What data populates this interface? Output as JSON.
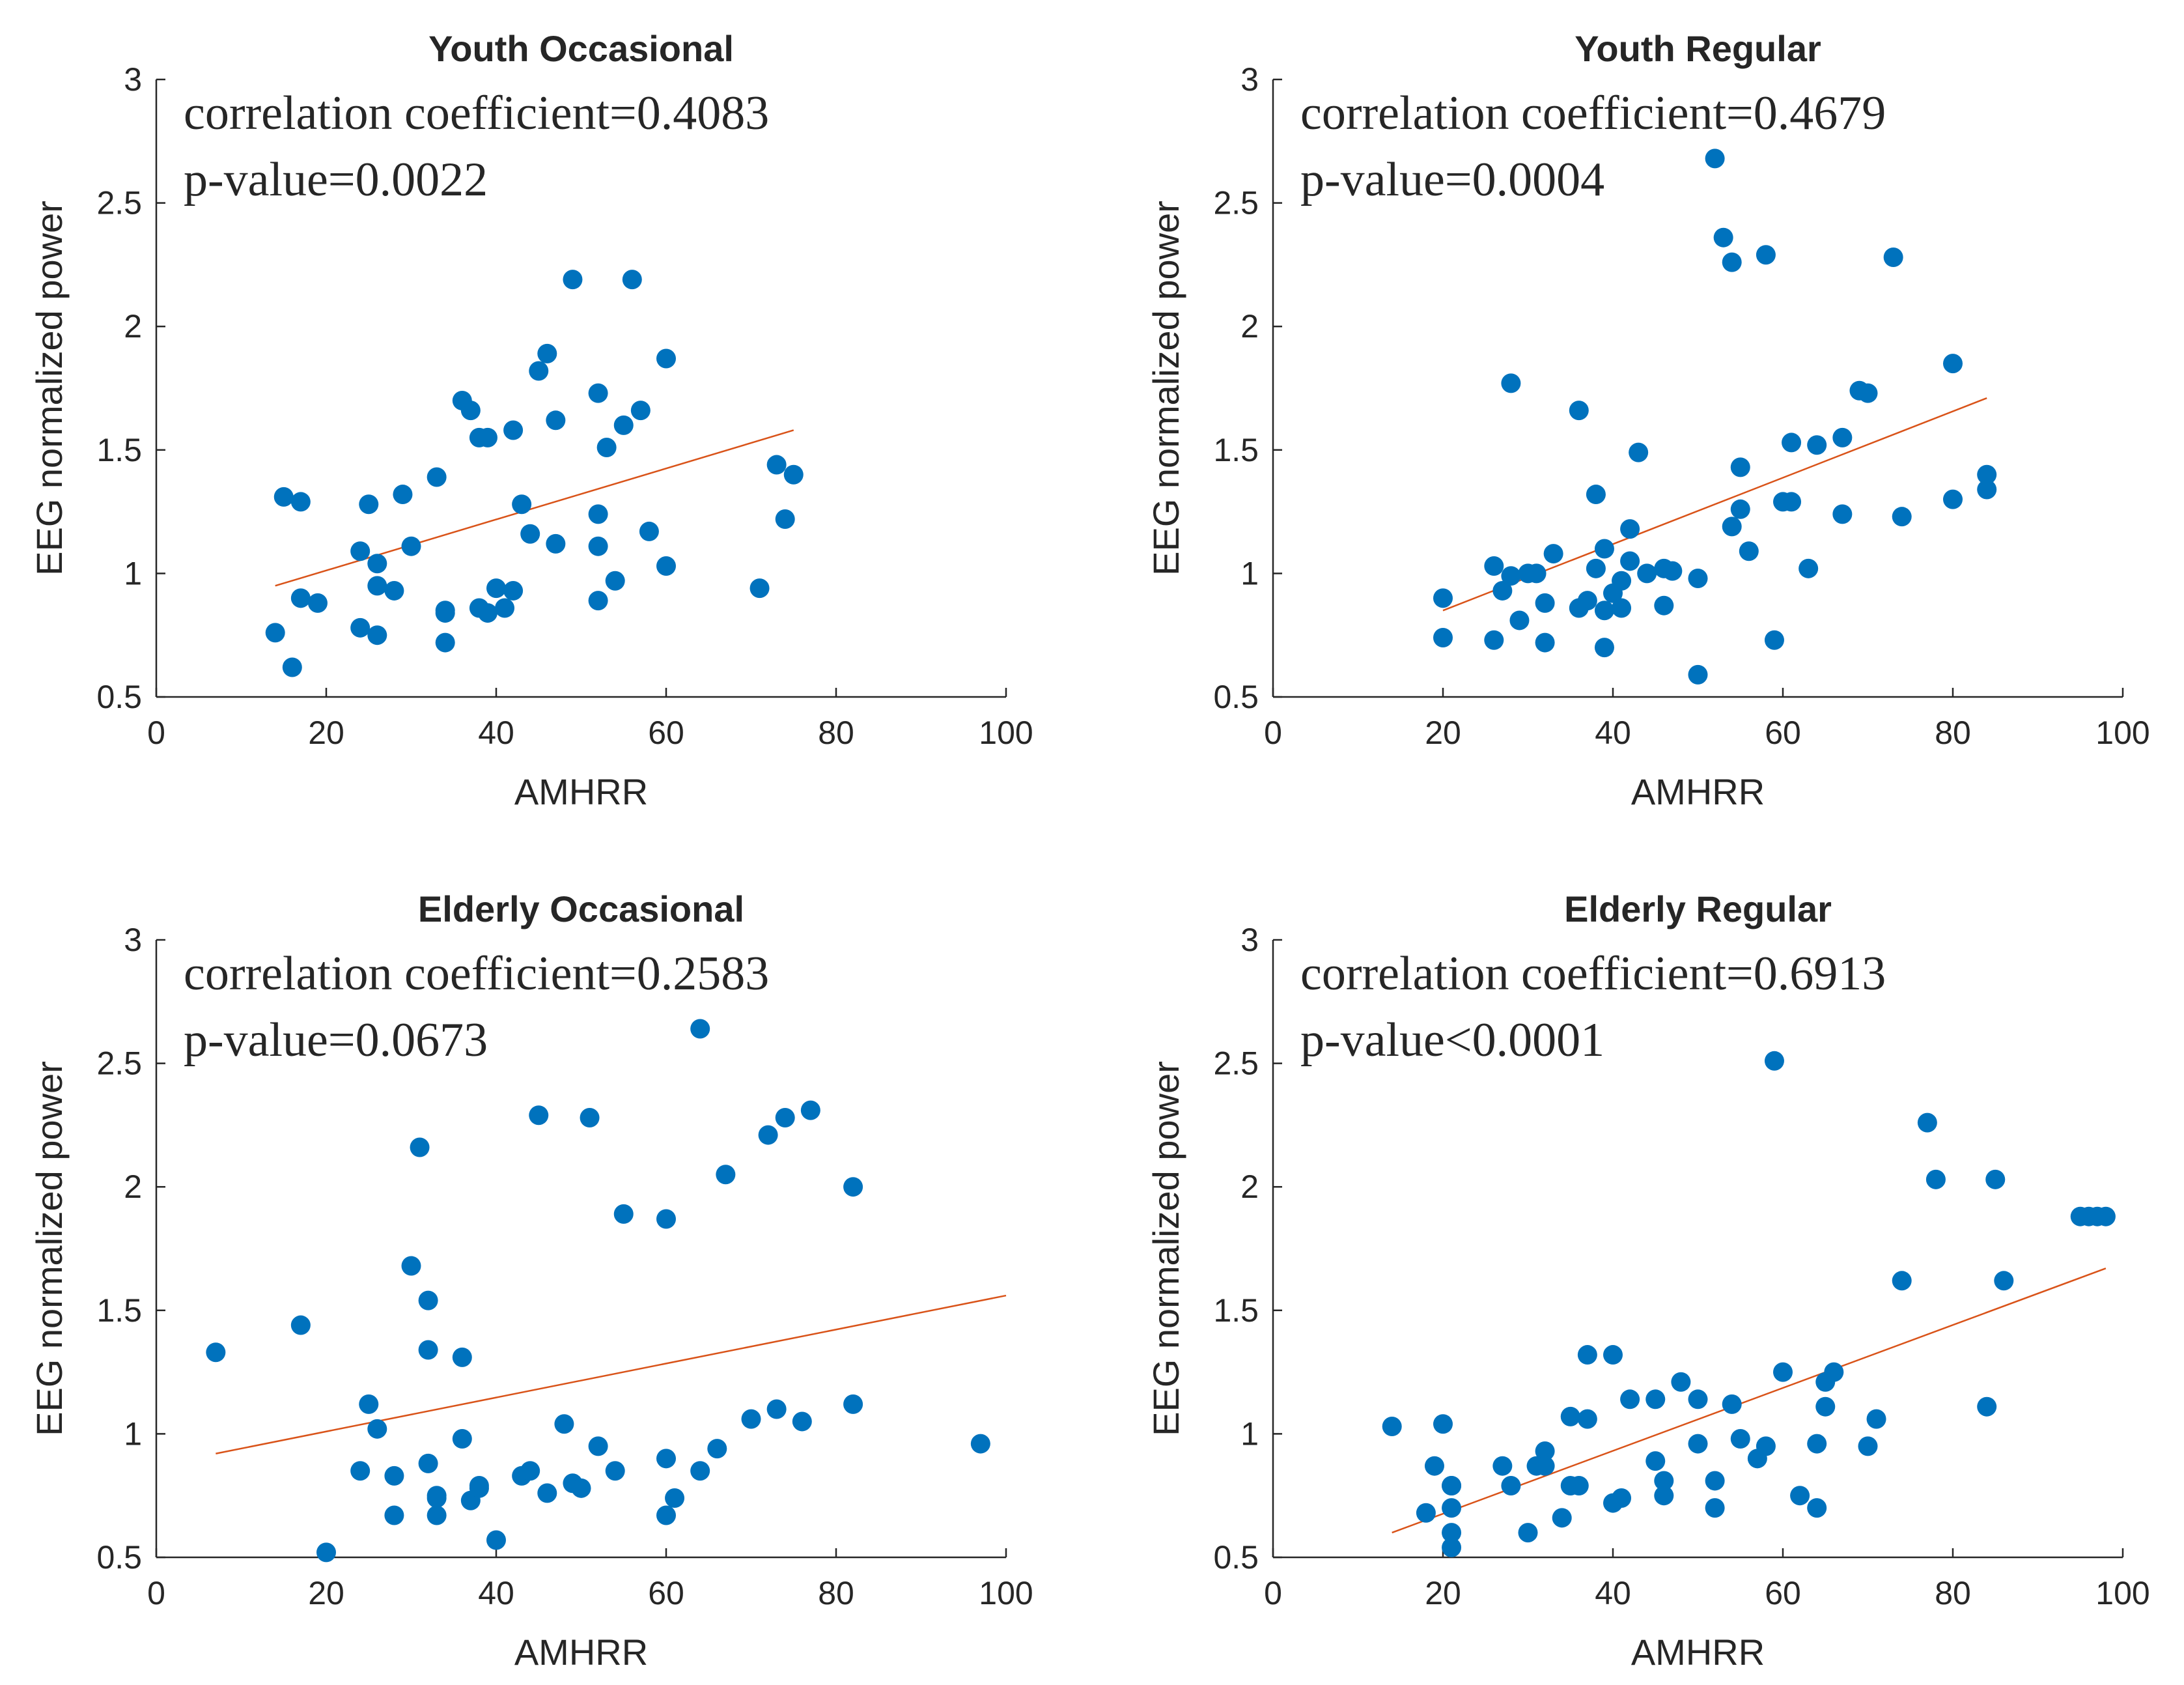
{
  "figure": {
    "colors": {
      "point": "#0072BD",
      "fit_line": "#D95319",
      "axis": "#262626"
    }
  },
  "chart_data": [
    {
      "type": "scatter",
      "title": "Youth Occasional",
      "xlabel": "AMHRR",
      "ylabel": "EEG normalized power",
      "xlim": [
        0,
        100
      ],
      "ylim": [
        0.5,
        3
      ],
      "xticks": [
        "0",
        "20",
        "40",
        "60",
        "80",
        "100"
      ],
      "yticks": [
        "0.5",
        "1",
        "1.5",
        "2",
        "2.5",
        "3"
      ],
      "annotations": [
        "correlation coefficient=0.4083",
        "p-value=0.0022"
      ],
      "fit_line": {
        "x": [
          14,
          75
        ],
        "y": [
          0.95,
          1.58
        ]
      },
      "x": [
        14,
        15,
        16,
        17,
        17,
        19,
        24,
        24,
        25,
        26,
        26,
        26,
        28,
        29,
        30,
        33,
        34,
        34,
        34,
        36,
        37,
        38,
        38,
        39,
        39,
        40,
        41,
        42,
        42,
        43,
        44,
        45,
        46,
        47,
        47,
        49,
        52,
        52,
        52,
        52,
        53,
        54,
        55,
        56,
        57,
        58,
        60,
        60,
        71,
        73,
        74,
        75
      ],
      "y": [
        0.76,
        1.31,
        0.62,
        1.29,
        0.9,
        0.88,
        1.09,
        0.78,
        1.28,
        0.75,
        0.95,
        1.04,
        0.93,
        1.32,
        1.11,
        1.39,
        0.85,
        0.84,
        0.72,
        1.7,
        1.66,
        1.55,
        0.86,
        1.55,
        0.84,
        0.94,
        0.86,
        1.58,
        0.93,
        1.28,
        1.16,
        1.82,
        1.89,
        1.62,
        1.12,
        2.19,
        1.73,
        1.24,
        1.11,
        0.89,
        1.51,
        0.97,
        1.6,
        2.19,
        1.66,
        1.17,
        1.03,
        1.87,
        0.94,
        1.44,
        1.22,
        1.4
      ]
    },
    {
      "type": "scatter",
      "title": "Youth Regular",
      "xlabel": "AMHRR",
      "ylabel": "EEG normalized power",
      "xlim": [
        0,
        100
      ],
      "ylim": [
        0.5,
        3
      ],
      "xticks": [
        "0",
        "20",
        "40",
        "60",
        "80",
        "100"
      ],
      "yticks": [
        "0.5",
        "1",
        "1.5",
        "2",
        "2.5",
        "3"
      ],
      "annotations": [
        "correlation coefficient=0.4679",
        "p-value=0.0004"
      ],
      "fit_line": {
        "x": [
          20,
          84
        ],
        "y": [
          0.85,
          1.71
        ]
      },
      "x": [
        20,
        20,
        26,
        26,
        27,
        28,
        29,
        30,
        31,
        32,
        32,
        33,
        36,
        37,
        38,
        38,
        39,
        39,
        39,
        40,
        41,
        41,
        42,
        42,
        43,
        44,
        46,
        46,
        47,
        50,
        52,
        53,
        54,
        54,
        55,
        55,
        56,
        58,
        59,
        61,
        61,
        63,
        64,
        67,
        67,
        69,
        70,
        73,
        74,
        80,
        80,
        84,
        84,
        36,
        28,
        50,
        60
      ],
      "y": [
        0.9,
        0.74,
        1.03,
        0.73,
        0.93,
        1.77,
        0.81,
        1.0,
        1.0,
        0.88,
        0.72,
        1.08,
        0.86,
        0.89,
        1.02,
        1.32,
        0.7,
        1.1,
        0.85,
        0.92,
        0.86,
        0.97,
        1.18,
        1.05,
        1.49,
        1.0,
        0.87,
        1.02,
        1.01,
        0.59,
        2.68,
        2.36,
        2.26,
        1.19,
        1.26,
        1.43,
        1.09,
        2.29,
        0.73,
        1.53,
        1.29,
        1.02,
        1.52,
        1.55,
        1.24,
        1.74,
        1.73,
        2.28,
        1.23,
        1.85,
        1.3,
        1.34,
        1.4,
        1.66,
        0.99,
        0.98,
        1.29
      ]
    },
    {
      "type": "scatter",
      "title": "Elderly Occasional",
      "xlabel": "AMHRR",
      "ylabel": "EEG normalized power",
      "xlim": [
        0,
        100
      ],
      "ylim": [
        0.5,
        3
      ],
      "xticks": [
        "0",
        "20",
        "40",
        "60",
        "80",
        "100"
      ],
      "yticks": [
        "0.5",
        "1",
        "1.5",
        "2",
        "2.5",
        "3"
      ],
      "annotations": [
        "correlation coefficient=0.2583",
        "p-value=0.0673"
      ],
      "fit_line": {
        "x": [
          7,
          100
        ],
        "y": [
          0.92,
          1.56
        ]
      },
      "x": [
        7,
        17,
        20,
        24,
        25,
        26,
        28,
        28,
        30,
        31,
        32,
        32,
        32,
        33,
        33,
        33,
        36,
        36,
        37,
        38,
        38,
        40,
        43,
        44,
        45,
        46,
        48,
        49,
        50,
        51,
        52,
        54,
        55,
        60,
        60,
        60,
        61,
        64,
        64,
        66,
        67,
        70,
        72,
        73,
        74,
        76,
        77,
        82,
        82,
        97
      ],
      "y": [
        1.33,
        1.44,
        0.52,
        0.85,
        1.12,
        1.02,
        0.83,
        0.67,
        1.68,
        2.16,
        1.54,
        1.34,
        0.88,
        0.75,
        0.67,
        0.74,
        1.31,
        0.98,
        0.73,
        0.78,
        0.79,
        0.57,
        0.83,
        0.85,
        2.29,
        0.76,
        1.04,
        0.8,
        0.78,
        2.28,
        0.95,
        0.85,
        1.89,
        1.87,
        0.9,
        0.67,
        0.74,
        2.64,
        0.85,
        0.94,
        2.05,
        1.06,
        2.21,
        1.1,
        2.28,
        1.05,
        2.31,
        2.0,
        1.12,
        0.96
      ]
    },
    {
      "type": "scatter",
      "title": "Elderly Regular",
      "xlabel": "AMHRR",
      "ylabel": "EEG normalized power",
      "xlim": [
        0,
        100
      ],
      "ylim": [
        0.5,
        3
      ],
      "xticks": [
        "0",
        "20",
        "40",
        "60",
        "80",
        "100"
      ],
      "yticks": [
        "0.5",
        "1",
        "1.5",
        "2",
        "2.5",
        "3"
      ],
      "annotations": [
        "correlation coefficient=0.6913",
        "p-value<0.0001"
      ],
      "fit_line": {
        "x": [
          14,
          98
        ],
        "y": [
          0.6,
          1.67
        ]
      },
      "x": [
        14,
        18,
        19,
        20,
        21,
        21,
        21,
        21,
        21,
        27,
        28,
        30,
        31,
        32,
        32,
        34,
        35,
        35,
        36,
        37,
        37,
        40,
        40,
        41,
        42,
        45,
        45,
        46,
        46,
        48,
        50,
        50,
        52,
        52,
        54,
        55,
        57,
        58,
        59,
        60,
        62,
        64,
        64,
        65,
        65,
        66,
        70,
        71,
        74,
        77,
        78,
        84,
        85,
        86,
        95,
        96,
        97,
        98
      ],
      "y": [
        1.03,
        0.68,
        0.87,
        1.04,
        0.79,
        0.6,
        0.7,
        0.54,
        0.79,
        0.87,
        0.79,
        0.6,
        0.87,
        0.93,
        0.87,
        0.66,
        0.79,
        1.07,
        0.79,
        1.06,
        1.32,
        1.32,
        0.72,
        0.74,
        1.14,
        1.14,
        0.89,
        0.75,
        0.81,
        1.21,
        1.14,
        0.96,
        0.81,
        0.7,
        1.12,
        0.98,
        0.9,
        0.95,
        2.51,
        1.25,
        0.75,
        0.96,
        0.7,
        1.21,
        1.11,
        1.25,
        0.95,
        1.06,
        1.62,
        2.26,
        2.03,
        1.11,
        2.03,
        1.62,
        1.88,
        1.88,
        1.88,
        1.88
      ]
    }
  ]
}
